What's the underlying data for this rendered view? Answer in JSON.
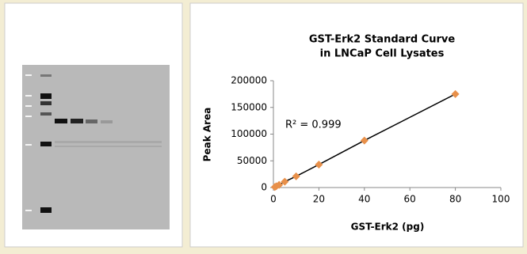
{
  "chart_data": {
    "type": "scatter",
    "title": "GST-Erk2 Standard Curve",
    "subtitle": "in LNCaP Cell Lysates",
    "x_label": "GST-Erk2 (pg)",
    "y_label": "Peak Area",
    "annotation": "R² = 0.999",
    "x": [
      0.625,
      1.25,
      2.5,
      5,
      10,
      20,
      40,
      80
    ],
    "values": [
      1000,
      2500,
      5000,
      11000,
      21000,
      43000,
      88000,
      175000
    ],
    "color": "#e8904a",
    "line_color": "#000000",
    "xlim": [
      0,
      100
    ],
    "xticks": [
      0,
      20,
      40,
      60,
      80,
      100
    ],
    "ylim": [
      0,
      200000
    ],
    "yticks": [
      0,
      50000,
      100000,
      150000,
      200000
    ]
  }
}
